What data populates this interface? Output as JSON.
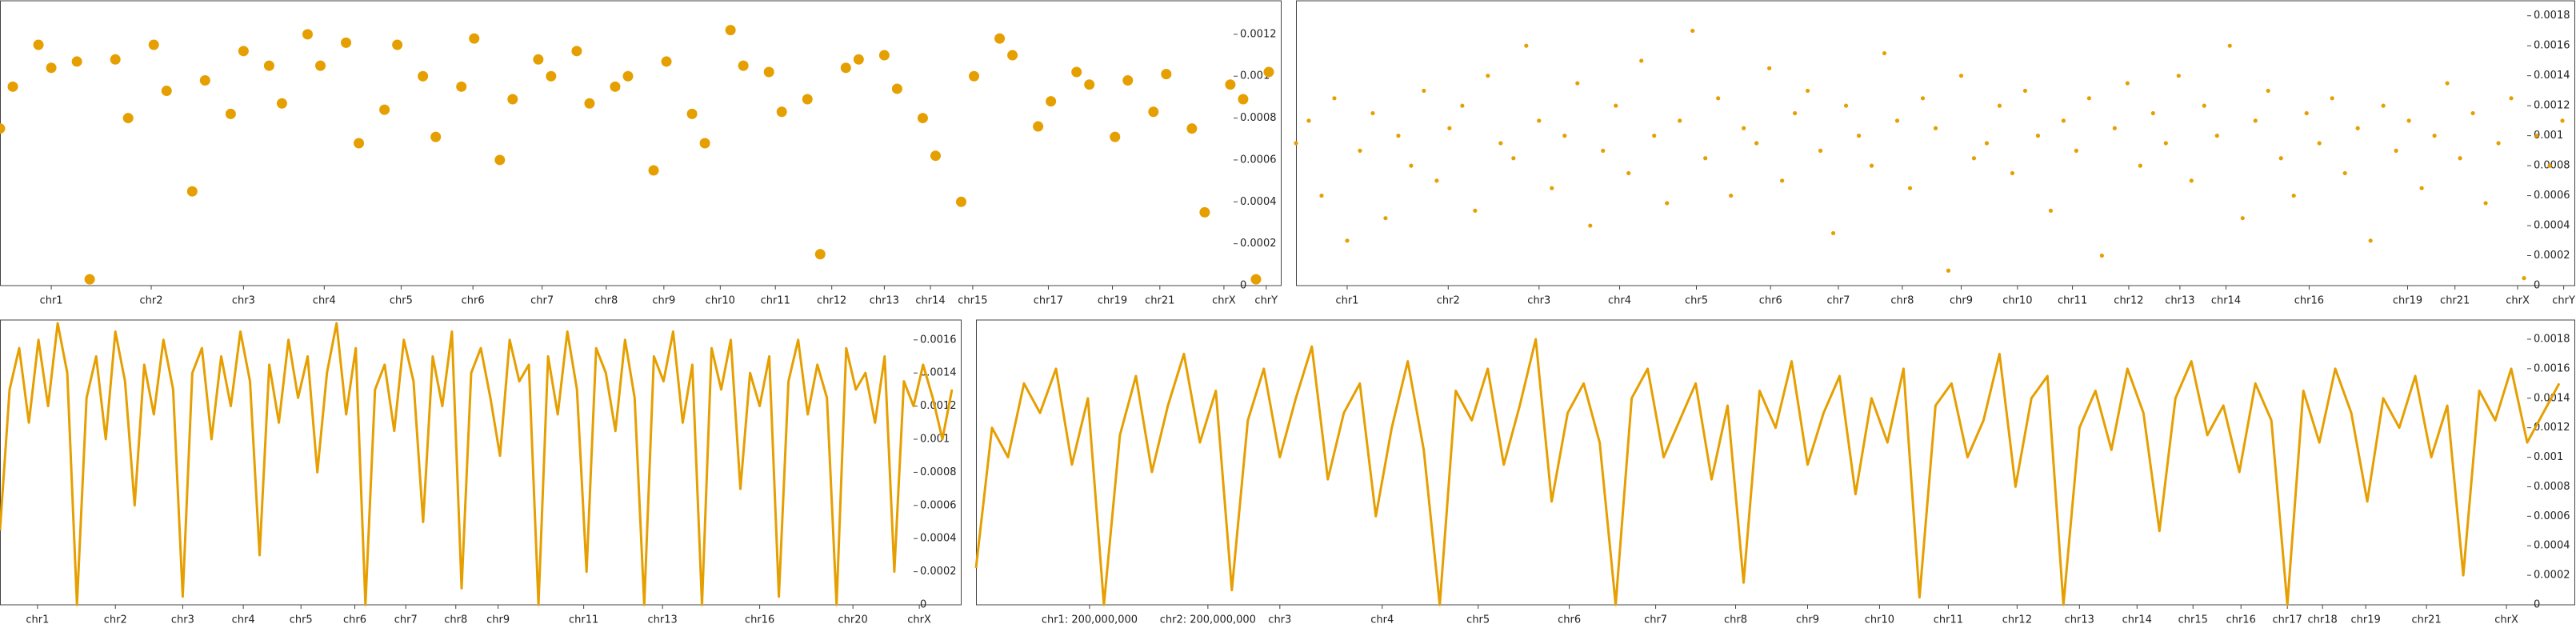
{
  "chart_data": [
    {
      "type": "scatter",
      "color": "#e69f00",
      "xlim": [
        0,
        100
      ],
      "ylim": [
        0,
        0.00136
      ],
      "yticks": [
        0,
        0.0002,
        0.0004,
        0.0006,
        0.0008,
        0.001,
        0.0012
      ],
      "xticks": [
        {
          "value": 4.0,
          "label": "chr1"
        },
        {
          "value": 11.8,
          "label": "chr2"
        },
        {
          "value": 19.0,
          "label": "chr3"
        },
        {
          "value": 25.3,
          "label": "chr4"
        },
        {
          "value": 31.3,
          "label": "chr5"
        },
        {
          "value": 36.9,
          "label": "chr6"
        },
        {
          "value": 42.3,
          "label": "chr7"
        },
        {
          "value": 47.3,
          "label": "chr8"
        },
        {
          "value": 51.8,
          "label": "chr9"
        },
        {
          "value": 56.2,
          "label": "chr10"
        },
        {
          "value": 60.5,
          "label": "chr11"
        },
        {
          "value": 64.9,
          "label": "chr12"
        },
        {
          "value": 69.0,
          "label": "chr13"
        },
        {
          "value": 72.6,
          "label": "chr14"
        },
        {
          "value": 75.9,
          "label": "chr15"
        },
        {
          "value": 81.8,
          "label": "chr17"
        },
        {
          "value": 86.8,
          "label": "chr19"
        },
        {
          "value": 90.5,
          "label": "chr21"
        },
        {
          "value": 95.5,
          "label": "chrX"
        },
        {
          "value": 98.8,
          "label": "chrY"
        }
      ],
      "x": [
        0,
        1,
        3,
        4,
        6,
        7,
        9,
        10,
        12,
        13,
        15,
        16,
        18,
        19,
        21,
        22,
        24,
        25,
        27,
        28,
        30,
        31,
        33,
        34,
        36,
        37,
        39,
        40,
        42,
        43,
        45,
        46,
        48,
        49,
        51,
        52,
        54,
        55,
        57,
        58,
        60,
        61,
        63,
        64,
        66,
        67,
        69,
        70,
        72,
        73,
        75,
        76,
        78,
        79,
        81,
        82,
        84,
        85,
        87,
        88,
        90,
        91,
        93,
        94,
        96,
        97,
        98,
        99
      ],
      "values": [
        0.00075,
        0.00095,
        0.00115,
        0.00104,
        0.00107,
        3e-05,
        0.00108,
        0.0008,
        0.00115,
        0.00093,
        0.00045,
        0.00098,
        0.00082,
        0.00112,
        0.00105,
        0.00087,
        0.0012,
        0.00105,
        0.00116,
        0.00068,
        0.00084,
        0.00115,
        0.001,
        0.00071,
        0.00095,
        0.00118,
        0.0006,
        0.00089,
        0.00108,
        0.001,
        0.00112,
        0.00087,
        0.00095,
        0.001,
        0.00055,
        0.00107,
        0.00082,
        0.00068,
        0.00122,
        0.00105,
        0.00102,
        0.00083,
        0.00089,
        0.00015,
        0.00104,
        0.00108,
        0.0011,
        0.00094,
        0.0008,
        0.00062,
        0.0004,
        0.001,
        0.00118,
        0.0011,
        0.00076,
        0.00088,
        0.00102,
        0.00096,
        0.00071,
        0.00098,
        0.00083,
        0.00101,
        0.00075,
        0.00035,
        0.00096,
        0.00089,
        3e-05,
        0.00102
      ]
    },
    {
      "type": "scatter",
      "color": "#e69f00",
      "xlim": [
        0,
        100
      ],
      "ylim": [
        0,
        0.0019
      ],
      "yticks": [
        0,
        0.0002,
        0.0004,
        0.0006,
        0.0008,
        0.001,
        0.0012,
        0.0014,
        0.0016,
        0.0018
      ],
      "xticks": [
        {
          "value": 4.0,
          "label": "chr1"
        },
        {
          "value": 11.9,
          "label": "chr2"
        },
        {
          "value": 19.0,
          "label": "chr3"
        },
        {
          "value": 25.3,
          "label": "chr4"
        },
        {
          "value": 31.3,
          "label": "chr5"
        },
        {
          "value": 37.1,
          "label": "chr6"
        },
        {
          "value": 42.4,
          "label": "chr7"
        },
        {
          "value": 47.4,
          "label": "chr8"
        },
        {
          "value": 52.0,
          "label": "chr9"
        },
        {
          "value": 56.4,
          "label": "chr10"
        },
        {
          "value": 60.7,
          "label": "chr11"
        },
        {
          "value": 65.1,
          "label": "chr12"
        },
        {
          "value": 69.1,
          "label": "chr13"
        },
        {
          "value": 72.7,
          "label": "chr14"
        },
        {
          "value": 79.2,
          "label": "chr16"
        },
        {
          "value": 86.9,
          "label": "chr19"
        },
        {
          "value": 90.6,
          "label": "chr21"
        },
        {
          "value": 95.5,
          "label": "chrX"
        },
        {
          "value": 99.1,
          "label": "chrY"
        }
      ],
      "x": [
        0,
        1,
        2,
        3,
        4,
        5,
        6,
        7,
        8,
        9,
        10,
        11,
        12,
        13,
        14,
        15,
        16,
        17,
        18,
        19,
        20,
        21,
        22,
        23,
        24,
        25,
        26,
        27,
        28,
        29,
        30,
        31,
        32,
        33,
        34,
        35,
        36,
        37,
        38,
        39,
        40,
        41,
        42,
        43,
        44,
        45,
        46,
        47,
        48,
        49,
        50,
        51,
        52,
        53,
        54,
        55,
        56,
        57,
        58,
        59,
        60,
        61,
        62,
        63,
        64,
        65,
        66,
        67,
        68,
        69,
        70,
        71,
        72,
        73,
        74,
        75,
        76,
        77,
        78,
        79,
        80,
        81,
        82,
        83,
        84,
        85,
        86,
        87,
        88,
        89,
        90,
        91,
        92,
        93,
        94,
        95,
        96,
        97,
        98,
        99
      ],
      "values": [
        0.00095,
        0.0011,
        0.0006,
        0.00125,
        0.0003,
        0.0009,
        0.00115,
        0.00045,
        0.001,
        0.0008,
        0.0013,
        0.0007,
        0.00105,
        0.0012,
        0.0005,
        0.0014,
        0.00095,
        0.00085,
        0.0016,
        0.0011,
        0.00065,
        0.001,
        0.00135,
        0.0004,
        0.0009,
        0.0012,
        0.00075,
        0.0015,
        0.001,
        0.00055,
        0.0011,
        0.0017,
        0.00085,
        0.00125,
        0.0006,
        0.00105,
        0.00095,
        0.00145,
        0.0007,
        0.00115,
        0.0013,
        0.0009,
        0.00035,
        0.0012,
        0.001,
        0.0008,
        0.00155,
        0.0011,
        0.00065,
        0.00125,
        0.00105,
        0.0001,
        0.0014,
        0.00085,
        0.00095,
        0.0012,
        0.00075,
        0.0013,
        0.001,
        0.0005,
        0.0011,
        0.0009,
        0.00125,
        0.0002,
        0.00105,
        0.00135,
        0.0008,
        0.00115,
        0.00095,
        0.0014,
        0.0007,
        0.0012,
        0.001,
        0.0016,
        0.00045,
        0.0011,
        0.0013,
        0.00085,
        0.0006,
        0.00115,
        0.00095,
        0.00125,
        0.00075,
        0.00105,
        0.0003,
        0.0012,
        0.0009,
        0.0011,
        0.00065,
        0.001,
        0.00135,
        0.00085,
        0.00115,
        0.00055,
        0.00095,
        0.00125,
        5e-05,
        0.001,
        0.0008,
        0.0011
      ]
    },
    {
      "type": "line",
      "color": "#e69f00",
      "xlim": [
        0,
        100
      ],
      "ylim": [
        0,
        0.00172
      ],
      "yticks": [
        0,
        0.0002,
        0.0004,
        0.0006,
        0.0008,
        0.001,
        0.0012,
        0.0014,
        0.0016
      ],
      "xticks": [
        {
          "value": 3.9,
          "label": "chr1"
        },
        {
          "value": 12.0,
          "label": "chr2"
        },
        {
          "value": 19.0,
          "label": "chr3"
        },
        {
          "value": 25.3,
          "label": "chr4"
        },
        {
          "value": 31.3,
          "label": "chr5"
        },
        {
          "value": 36.9,
          "label": "chr6"
        },
        {
          "value": 42.2,
          "label": "chr7"
        },
        {
          "value": 47.4,
          "label": "chr8"
        },
        {
          "value": 51.8,
          "label": "chr9"
        },
        {
          "value": 60.7,
          "label": "chr11"
        },
        {
          "value": 68.9,
          "label": "chr13"
        },
        {
          "value": 79.0,
          "label": "chr16"
        },
        {
          "value": 88.7,
          "label": "chr20"
        },
        {
          "value": 95.6,
          "label": "chrX"
        }
      ],
      "x": [
        0,
        1,
        2,
        3,
        4,
        5,
        6,
        7,
        8,
        9,
        10,
        11,
        12,
        13,
        14,
        15,
        16,
        17,
        18,
        19,
        20,
        21,
        22,
        23,
        24,
        25,
        26,
        27,
        28,
        29,
        30,
        31,
        32,
        33,
        34,
        35,
        36,
        37,
        38,
        39,
        40,
        41,
        42,
        43,
        44,
        45,
        46,
        47,
        48,
        49,
        50,
        51,
        52,
        53,
        54,
        55,
        56,
        57,
        58,
        59,
        60,
        61,
        62,
        63,
        64,
        65,
        66,
        67,
        68,
        69,
        70,
        71,
        72,
        73,
        74,
        75,
        76,
        77,
        78,
        79,
        80,
        81,
        82,
        83,
        84,
        85,
        86,
        87,
        88,
        89,
        90,
        91,
        92,
        93,
        94,
        95,
        96,
        97,
        98,
        99
      ],
      "values": [
        0.00045,
        0.0013,
        0.00155,
        0.0011,
        0.0016,
        0.0012,
        0.0017,
        0.0014,
        0.0,
        0.00125,
        0.0015,
        0.001,
        0.00165,
        0.00135,
        0.0006,
        0.00145,
        0.00115,
        0.0016,
        0.0013,
        5e-05,
        0.0014,
        0.00155,
        0.001,
        0.0015,
        0.0012,
        0.00165,
        0.00135,
        0.0003,
        0.00145,
        0.0011,
        0.0016,
        0.00125,
        0.0015,
        0.0008,
        0.0014,
        0.0017,
        0.00115,
        0.00155,
        0.0,
        0.0013,
        0.00145,
        0.00105,
        0.0016,
        0.00135,
        0.0005,
        0.0015,
        0.0012,
        0.00165,
        0.0001,
        0.0014,
        0.00155,
        0.00125,
        0.0009,
        0.0016,
        0.00135,
        0.00145,
        0.0,
        0.0015,
        0.00115,
        0.00165,
        0.0013,
        0.0002,
        0.00155,
        0.0014,
        0.00105,
        0.0016,
        0.00125,
        0.0,
        0.0015,
        0.00135,
        0.00165,
        0.0011,
        0.00145,
        0.0,
        0.00155,
        0.0013,
        0.0016,
        0.0007,
        0.0014,
        0.0012,
        0.0015,
        5e-05,
        0.00135,
        0.0016,
        0.00115,
        0.00145,
        0.00125,
        0.0,
        0.00155,
        0.0013,
        0.0014,
        0.0011,
        0.0015,
        0.0002,
        0.00135,
        0.0012,
        0.00145,
        0.00125,
        0.001,
        0.0013
      ]
    },
    {
      "type": "line",
      "color": "#e69f00",
      "xlim": [
        0,
        100
      ],
      "ylim": [
        0,
        0.00193
      ],
      "yticks": [
        0,
        0.0002,
        0.0004,
        0.0006,
        0.0008,
        0.001,
        0.0012,
        0.0014,
        0.0016,
        0.0018
      ],
      "xticks": [
        {
          "value": 7.1,
          "label": "chr1: 200,000,000"
        },
        {
          "value": 14.5,
          "label": "chr2: 200,000,000"
        },
        {
          "value": 19.0,
          "label": "chr3"
        },
        {
          "value": 25.4,
          "label": "chr4"
        },
        {
          "value": 31.4,
          "label": "chr5"
        },
        {
          "value": 37.1,
          "label": "chr6"
        },
        {
          "value": 42.5,
          "label": "chr7"
        },
        {
          "value": 47.5,
          "label": "chr8"
        },
        {
          "value": 52.0,
          "label": "chr9"
        },
        {
          "value": 56.5,
          "label": "chr10"
        },
        {
          "value": 60.8,
          "label": "chr11"
        },
        {
          "value": 65.1,
          "label": "chr12"
        },
        {
          "value": 69.0,
          "label": "chr13"
        },
        {
          "value": 72.6,
          "label": "chr14"
        },
        {
          "value": 76.1,
          "label": "chr15"
        },
        {
          "value": 79.1,
          "label": "chr16"
        },
        {
          "value": 82.0,
          "label": "chr17"
        },
        {
          "value": 84.2,
          "label": "chr18"
        },
        {
          "value": 86.9,
          "label": "chr19"
        },
        {
          "value": 90.7,
          "label": "chr21"
        },
        {
          "value": 95.7,
          "label": "chrX"
        }
      ],
      "x": [
        0,
        1,
        2,
        3,
        4,
        5,
        6,
        7,
        8,
        9,
        10,
        11,
        12,
        13,
        14,
        15,
        16,
        17,
        18,
        19,
        20,
        21,
        22,
        23,
        24,
        25,
        26,
        27,
        28,
        29,
        30,
        31,
        32,
        33,
        34,
        35,
        36,
        37,
        38,
        39,
        40,
        41,
        42,
        43,
        44,
        45,
        46,
        47,
        48,
        49,
        50,
        51,
        52,
        53,
        54,
        55,
        56,
        57,
        58,
        59,
        60,
        61,
        62,
        63,
        64,
        65,
        66,
        67,
        68,
        69,
        70,
        71,
        72,
        73,
        74,
        75,
        76,
        77,
        78,
        79,
        80,
        81,
        82,
        83,
        84,
        85,
        86,
        87,
        88,
        89,
        90,
        91,
        92,
        93,
        94,
        95,
        96,
        97,
        98,
        99
      ],
      "values": [
        0.00025,
        0.0012,
        0.001,
        0.0015,
        0.0013,
        0.0016,
        0.00095,
        0.0014,
        0.0,
        0.00115,
        0.00155,
        0.0009,
        0.00135,
        0.0017,
        0.0011,
        0.00145,
        0.0001,
        0.00125,
        0.0016,
        0.001,
        0.0014,
        0.00175,
        0.00085,
        0.0013,
        0.0015,
        0.0006,
        0.0012,
        0.00165,
        0.00105,
        0.0,
        0.00145,
        0.00125,
        0.0016,
        0.00095,
        0.00135,
        0.0018,
        0.0007,
        0.0013,
        0.0015,
        0.0011,
        0.0,
        0.0014,
        0.0016,
        0.001,
        0.00125,
        0.0015,
        0.00085,
        0.00135,
        0.00015,
        0.00145,
        0.0012,
        0.00165,
        0.00095,
        0.0013,
        0.00155,
        0.00075,
        0.0014,
        0.0011,
        0.0016,
        5e-05,
        0.00135,
        0.0015,
        0.001,
        0.00125,
        0.0017,
        0.0008,
        0.0014,
        0.00155,
        0.0,
        0.0012,
        0.00145,
        0.00105,
        0.0016,
        0.0013,
        0.0005,
        0.0014,
        0.00165,
        0.00115,
        0.00135,
        0.0009,
        0.0015,
        0.00125,
        0.0,
        0.00145,
        0.0011,
        0.0016,
        0.0013,
        0.0007,
        0.0014,
        0.0012,
        0.00155,
        0.001,
        0.00135,
        0.0002,
        0.00145,
        0.00125,
        0.0016,
        0.0011,
        0.0013,
        0.0015
      ]
    }
  ]
}
